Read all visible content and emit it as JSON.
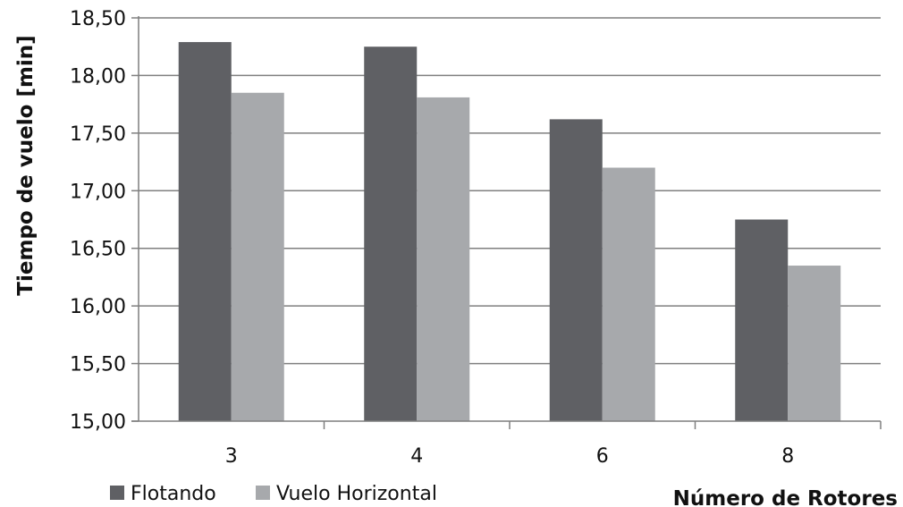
{
  "chart_data": {
    "type": "bar",
    "title": "",
    "xlabel": "Número de Rotores",
    "ylabel": "Tiempo de vuelo [min]",
    "categories": [
      "3",
      "4",
      "6",
      "8"
    ],
    "series": [
      {
        "name": "Flotando",
        "values": [
          18.29,
          18.25,
          17.62,
          16.75
        ],
        "color": "#5f6064"
      },
      {
        "name": "Vuelo Horizontal",
        "values": [
          17.85,
          17.81,
          17.2,
          16.35
        ],
        "color": "#a7a9ac"
      }
    ],
    "ylim": [
      15.0,
      18.5
    ],
    "yticks": [
      15.0,
      15.5,
      16.0,
      16.5,
      17.0,
      17.5,
      18.0,
      18.5
    ],
    "ytick_labels": [
      "15,00",
      "15,50",
      "16,00",
      "16,50",
      "17,00",
      "17,50",
      "18,00",
      "18,50"
    ],
    "grid": "horizontal",
    "legend_position": "bottom-left",
    "colors": {
      "axis": "#7f7f7f",
      "grid": "#7f7f7f",
      "text": "#111111"
    }
  }
}
